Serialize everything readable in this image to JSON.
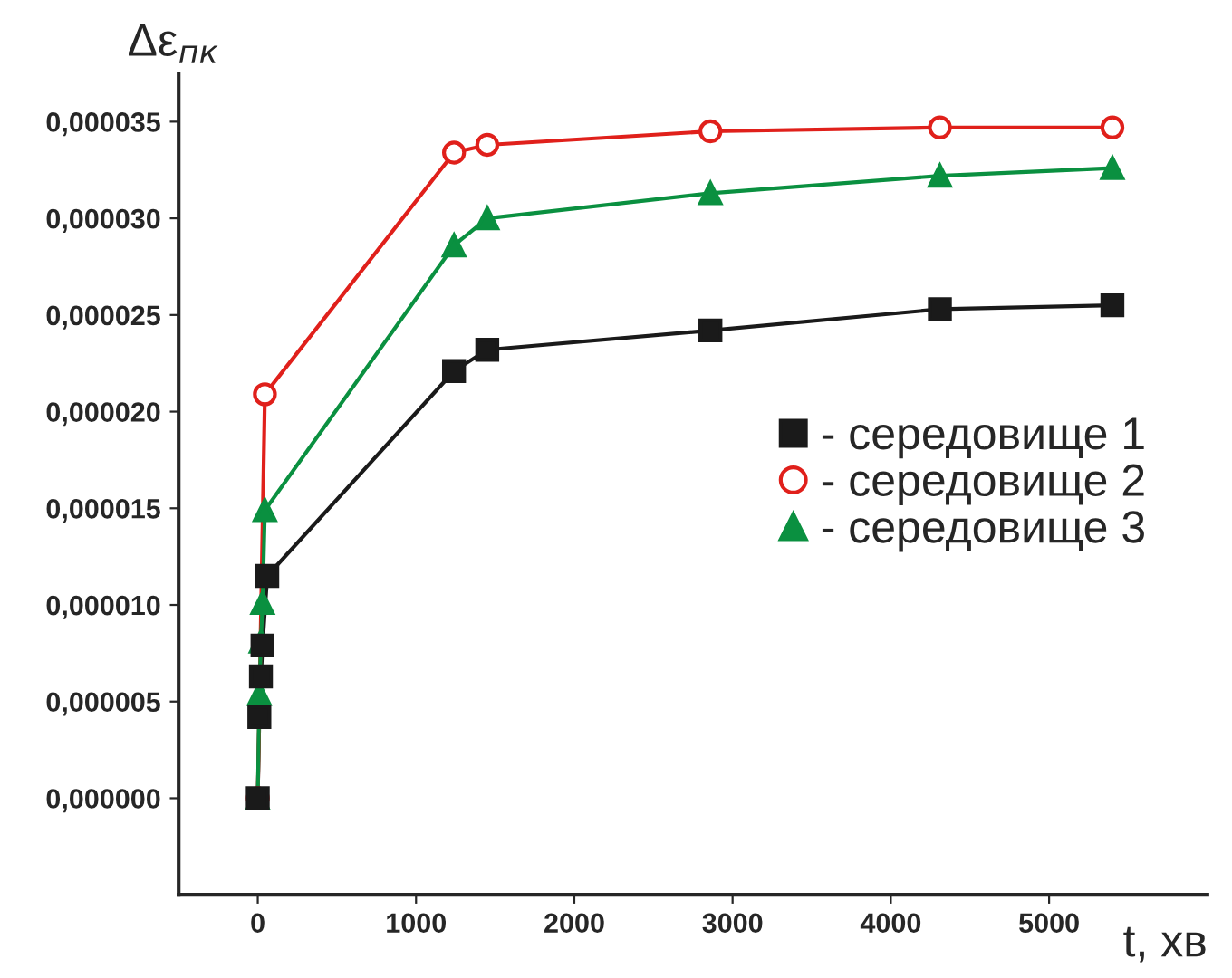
{
  "chart_data": {
    "type": "line",
    "xlabel": "t, хв",
    "ylabel": "Δε$_{пк}$",
    "xlim": [
      -500,
      6000
    ],
    "xticks": [
      0,
      1000,
      2000,
      3000,
      4000,
      5000
    ],
    "ylim": [
      -5e-06,
      3.75e-05
    ],
    "yticks": [
      {
        "value": 0,
        "label": "0,000000"
      },
      {
        "value": 5e-06,
        "label": "0,000005"
      },
      {
        "value": 1e-05,
        "label": "0,000010"
      },
      {
        "value": 1.5e-05,
        "label": "0,000015"
      },
      {
        "value": 2e-05,
        "label": "0,000020"
      },
      {
        "value": 2.5e-05,
        "label": "0,000025"
      },
      {
        "value": 3e-05,
        "label": "0,000030"
      },
      {
        "value": 3.5e-05,
        "label": "0,000035"
      }
    ],
    "grid": false,
    "legend": "right",
    "line_style": "solid",
    "series": [
      {
        "name": "- середовище 1",
        "color": "#1a1a1a",
        "marker": "square",
        "x": [
          0,
          10,
          20,
          30,
          60,
          1240,
          1450,
          2860,
          4310,
          5400
        ],
        "values": [
          0,
          4.2e-06,
          6.3e-06,
          7.9e-06,
          1.15e-05,
          2.21e-05,
          2.32e-05,
          2.42e-05,
          2.53e-05,
          2.55e-05
        ]
      },
      {
        "name": "- середовище 2",
        "color": "#e0201b",
        "marker": "circle",
        "x": [
          0,
          45,
          1240,
          1450,
          2860,
          4310,
          5400
        ],
        "values": [
          0,
          2.09e-05,
          3.34e-05,
          3.38e-05,
          3.45e-05,
          3.47e-05,
          3.47e-05
        ]
      },
      {
        "name": "- середовище 3",
        "color": "#0a9040",
        "marker": "triangle",
        "x": [
          0,
          10,
          20,
          30,
          45,
          1240,
          1450,
          2860,
          4310,
          5400
        ],
        "values": [
          0,
          5.4e-06,
          8.1e-06,
          1.01e-05,
          1.49e-05,
          2.86e-05,
          3e-05,
          3.13e-05,
          3.22e-05,
          3.26e-05
        ]
      }
    ]
  }
}
